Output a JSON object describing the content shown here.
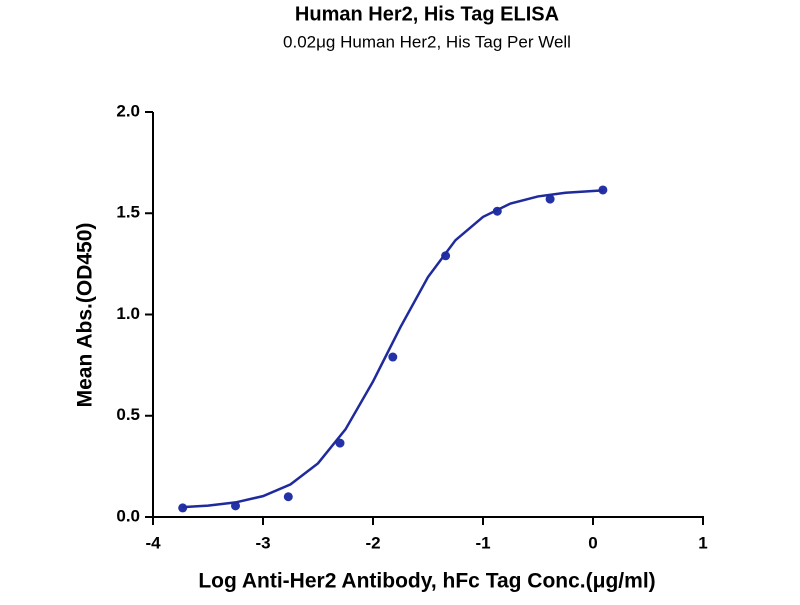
{
  "chart_data": {
    "type": "scatter",
    "title": "Human Her2, His Tag ELISA",
    "subtitle": "0.02μg Human Her2, His Tag Per Well",
    "x_label": "Log Anti-Her2 Antibody, hFc Tag Conc.(μg/ml)",
    "y_label": "Mean Abs.(OD450)",
    "xlim": [
      -4,
      1
    ],
    "ylim": [
      0,
      2
    ],
    "xticks": [
      -4,
      -3,
      -2,
      -1,
      0,
      1
    ],
    "yticks": [
      {
        "value": 0,
        "label": "0.0"
      },
      {
        "value": 0.5,
        "label": "0.5"
      },
      {
        "value": 1,
        "label": "1.0"
      },
      {
        "value": 1.5,
        "label": "1.5"
      },
      {
        "value": 2,
        "label": "2.0"
      }
    ],
    "series": [
      {
        "type": "scatter",
        "color": "#2432a8",
        "x": [
          -3.73,
          -3.25,
          -2.77,
          -2.3,
          -1.82,
          -1.34,
          -0.87,
          -0.39,
          0.09
        ],
        "values": [
          0.045,
          0.055,
          0.1,
          0.365,
          0.79,
          1.29,
          1.51,
          1.57,
          1.615
        ]
      },
      {
        "type": "line",
        "color": "#1f2a9c",
        "x": [
          -3.73,
          -3.5,
          -3.25,
          -3.0,
          -2.75,
          -2.5,
          -2.25,
          -2.0,
          -1.75,
          -1.5,
          -1.25,
          -1.0,
          -0.75,
          -0.5,
          -0.25,
          0.09
        ],
        "values": [
          0.049,
          0.056,
          0.072,
          0.103,
          0.161,
          0.265,
          0.433,
          0.669,
          0.938,
          1.185,
          1.367,
          1.482,
          1.548,
          1.583,
          1.601,
          1.613
        ]
      }
    ]
  }
}
